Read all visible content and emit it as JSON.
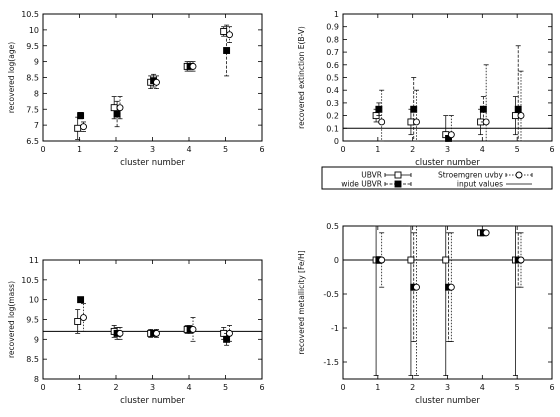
{
  "chart_data": [
    {
      "type": "scatter",
      "xlabel": "cluster number",
      "ylabel": "recovered log(age)",
      "xlim": [
        0,
        6
      ],
      "ylim": [
        6.5,
        10.5
      ],
      "xticks": [
        "0",
        "1",
        "2",
        "3",
        "4",
        "5",
        "6"
      ],
      "yticks": [
        "6.5",
        "7",
        "7.5",
        "8",
        "8.5",
        "9",
        "9.5",
        "10",
        "10.5"
      ],
      "series": [
        {
          "name": "UBVR",
          "marker": "open-square",
          "x": [
            0.95,
            1.95,
            2.95,
            3.95,
            4.95
          ],
          "y": [
            6.9,
            7.55,
            8.35,
            8.85,
            9.95
          ],
          "err": [
            0.35,
            0.35,
            0.2,
            0.15,
            0.15
          ]
        },
        {
          "name": "wide UBVR",
          "marker": "filled-square",
          "x": [
            1.03,
            2.03,
            3.03,
            4.03,
            5.03
          ],
          "y": [
            7.3,
            7.35,
            8.4,
            8.85,
            9.35
          ],
          "err": [
            0.1,
            0.4,
            0.2,
            0.15,
            0.8
          ]
        },
        {
          "name": "Stroemgren uvby",
          "marker": "open-circle",
          "x": [
            1.11,
            2.11,
            3.11,
            4.11,
            5.11
          ],
          "y": [
            6.95,
            7.55,
            8.35,
            8.85,
            9.85
          ],
          "err": [
            0.15,
            0.35,
            0.2,
            0.15,
            0.25
          ]
        }
      ]
    },
    {
      "type": "scatter",
      "xlabel": "cluster number",
      "ylabel": "recovered extinction E(B-V)",
      "xlim": [
        0,
        6
      ],
      "ylim": [
        0,
        1
      ],
      "xticks": [
        "0",
        "1",
        "2",
        "3",
        "4",
        "5",
        "6"
      ],
      "yticks": [
        "0",
        "0.1",
        "0.2",
        "0.3",
        "0.4",
        "0.5",
        "0.6",
        "0.7",
        "0.8",
        "0.9",
        "1"
      ],
      "reference_line": 0.1,
      "series": [
        {
          "name": "UBVR",
          "marker": "open-square",
          "x": [
            0.95,
            1.95,
            2.95,
            3.95,
            4.95
          ],
          "y": [
            0.2,
            0.15,
            0.05,
            0.15,
            0.2
          ],
          "err": [
            0.05,
            0.1,
            0.15,
            0.1,
            0.15
          ]
        },
        {
          "name": "wide UBVR",
          "marker": "filled-square",
          "x": [
            1.03,
            2.03,
            3.03,
            4.03,
            5.03
          ],
          "y": [
            0.25,
            0.25,
            0.02,
            0.25,
            0.25
          ],
          "err": [
            0.05,
            0.25,
            0.02,
            0.1,
            0.5
          ]
        },
        {
          "name": "Stroemgren uvby",
          "marker": "open-circle",
          "x": [
            1.11,
            2.11,
            3.11,
            4.11,
            5.11
          ],
          "y": [
            0.15,
            0.15,
            0.05,
            0.15,
            0.2
          ],
          "err": [
            0.25,
            0.25,
            0.15,
            0.45,
            0.35
          ]
        }
      ]
    },
    {
      "type": "scatter",
      "xlabel": "cluster number",
      "ylabel": "recovered log(mass)",
      "xlim": [
        0,
        6
      ],
      "ylim": [
        8,
        11
      ],
      "xticks": [
        "0",
        "1",
        "2",
        "3",
        "4",
        "5",
        "6"
      ],
      "yticks": [
        "8",
        "8.5",
        "9",
        "9.5",
        "10",
        "10.5",
        "11"
      ],
      "reference_line": 9.2,
      "series": [
        {
          "name": "UBVR",
          "marker": "open-square",
          "x": [
            0.95,
            1.95,
            2.95,
            3.95,
            4.95
          ],
          "y": [
            9.45,
            9.2,
            9.15,
            9.25,
            9.15
          ],
          "err": [
            0.3,
            0.15,
            0.1,
            0.1,
            0.15
          ]
        },
        {
          "name": "wide UBVR",
          "marker": "filled-square",
          "x": [
            1.03,
            2.03,
            3.03,
            4.03,
            5.03
          ],
          "y": [
            10.0,
            9.15,
            9.15,
            9.25,
            9.0
          ],
          "err": [
            0.05,
            0.15,
            0.05,
            0.1,
            0.15
          ]
        },
        {
          "name": "Stroemgren uvby",
          "marker": "open-circle",
          "x": [
            1.11,
            2.11,
            3.11,
            4.11,
            5.11
          ],
          "y": [
            9.55,
            9.15,
            9.15,
            9.25,
            9.15
          ],
          "err": [
            0.35,
            0.15,
            0.1,
            0.3,
            0.2
          ]
        }
      ]
    },
    {
      "type": "scatter",
      "xlabel": "cluster number",
      "ylabel": "recovered metallicity [Fe/H]",
      "xlim": [
        0,
        6
      ],
      "ylim": [
        -1.75,
        0.5
      ],
      "xticks": [
        "0",
        "1",
        "2",
        "3",
        "4",
        "5",
        "6"
      ],
      "yticks": [
        "-1.5",
        "-1",
        "-0.5",
        "0",
        "0.5"
      ],
      "reference_line": 0,
      "series": [
        {
          "name": "UBVR",
          "marker": "open-square",
          "x": [
            0.95,
            1.95,
            2.95,
            3.95,
            4.95
          ],
          "y": [
            0.0,
            0.0,
            0.0,
            0.4,
            0.0
          ],
          "err": [
            1.7,
            1.7,
            1.7,
            0.02,
            1.7
          ]
        },
        {
          "name": "wide UBVR",
          "marker": "filled-square",
          "x": [
            1.03,
            2.03,
            3.03,
            4.03,
            5.03
          ],
          "y": [
            0.0,
            -0.4,
            -0.4,
            0.4,
            0.0
          ],
          "err": [
            0.05,
            0.8,
            0.8,
            0.02,
            0.4
          ]
        },
        {
          "name": "Stroemgren uvby",
          "marker": "open-circle",
          "x": [
            1.11,
            2.11,
            3.11,
            4.11,
            5.11
          ],
          "y": [
            0.0,
            -0.4,
            -0.4,
            0.4,
            0.0
          ],
          "err": [
            0.4,
            1.3,
            0.8,
            0.02,
            0.4
          ]
        }
      ]
    }
  ],
  "legend": {
    "items": [
      {
        "label": "UBVR",
        "style": "open-square"
      },
      {
        "label": "Stroemgren uvby",
        "style": "open-circle"
      },
      {
        "label": "wide UBVR",
        "style": "filled-square"
      },
      {
        "label": "input values",
        "style": "line"
      }
    ]
  }
}
